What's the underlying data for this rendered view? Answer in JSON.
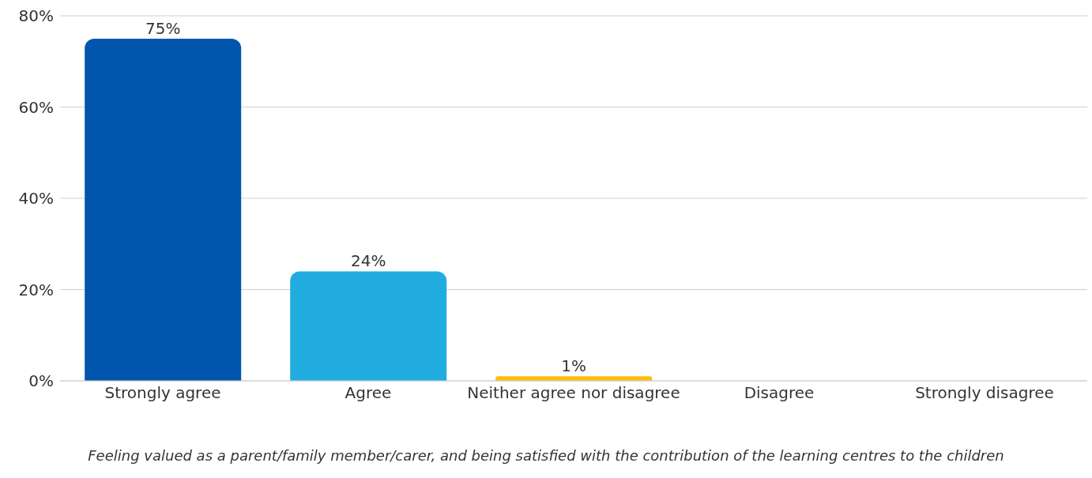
{
  "chart_data": {
    "type": "bar",
    "categories": [
      "Strongly agree",
      "Agree",
      "Neither agree nor disagree",
      "Disagree",
      "Strongly disagree"
    ],
    "values": [
      75,
      24,
      1,
      0,
      0
    ],
    "colors": [
      "#0056ac",
      "#21ace0",
      "#fbbf0a",
      "#7f7f7f",
      "#a5a5a5"
    ],
    "value_labels": [
      "75%",
      "24%",
      "1%",
      null,
      null
    ],
    "ylim": [
      0,
      80
    ],
    "yticks": [
      {
        "value": 0,
        "label": "0%"
      },
      {
        "value": 20,
        "label": "20%"
      },
      {
        "value": 40,
        "label": "40%"
      },
      {
        "value": 60,
        "label": "60%"
      },
      {
        "value": 80,
        "label": "80%"
      }
    ],
    "grid": "y",
    "annotations": [
      "Feeling valued as a parent/family member/carer, and being satisfied with the contribution of the learning centres to the children"
    ]
  }
}
